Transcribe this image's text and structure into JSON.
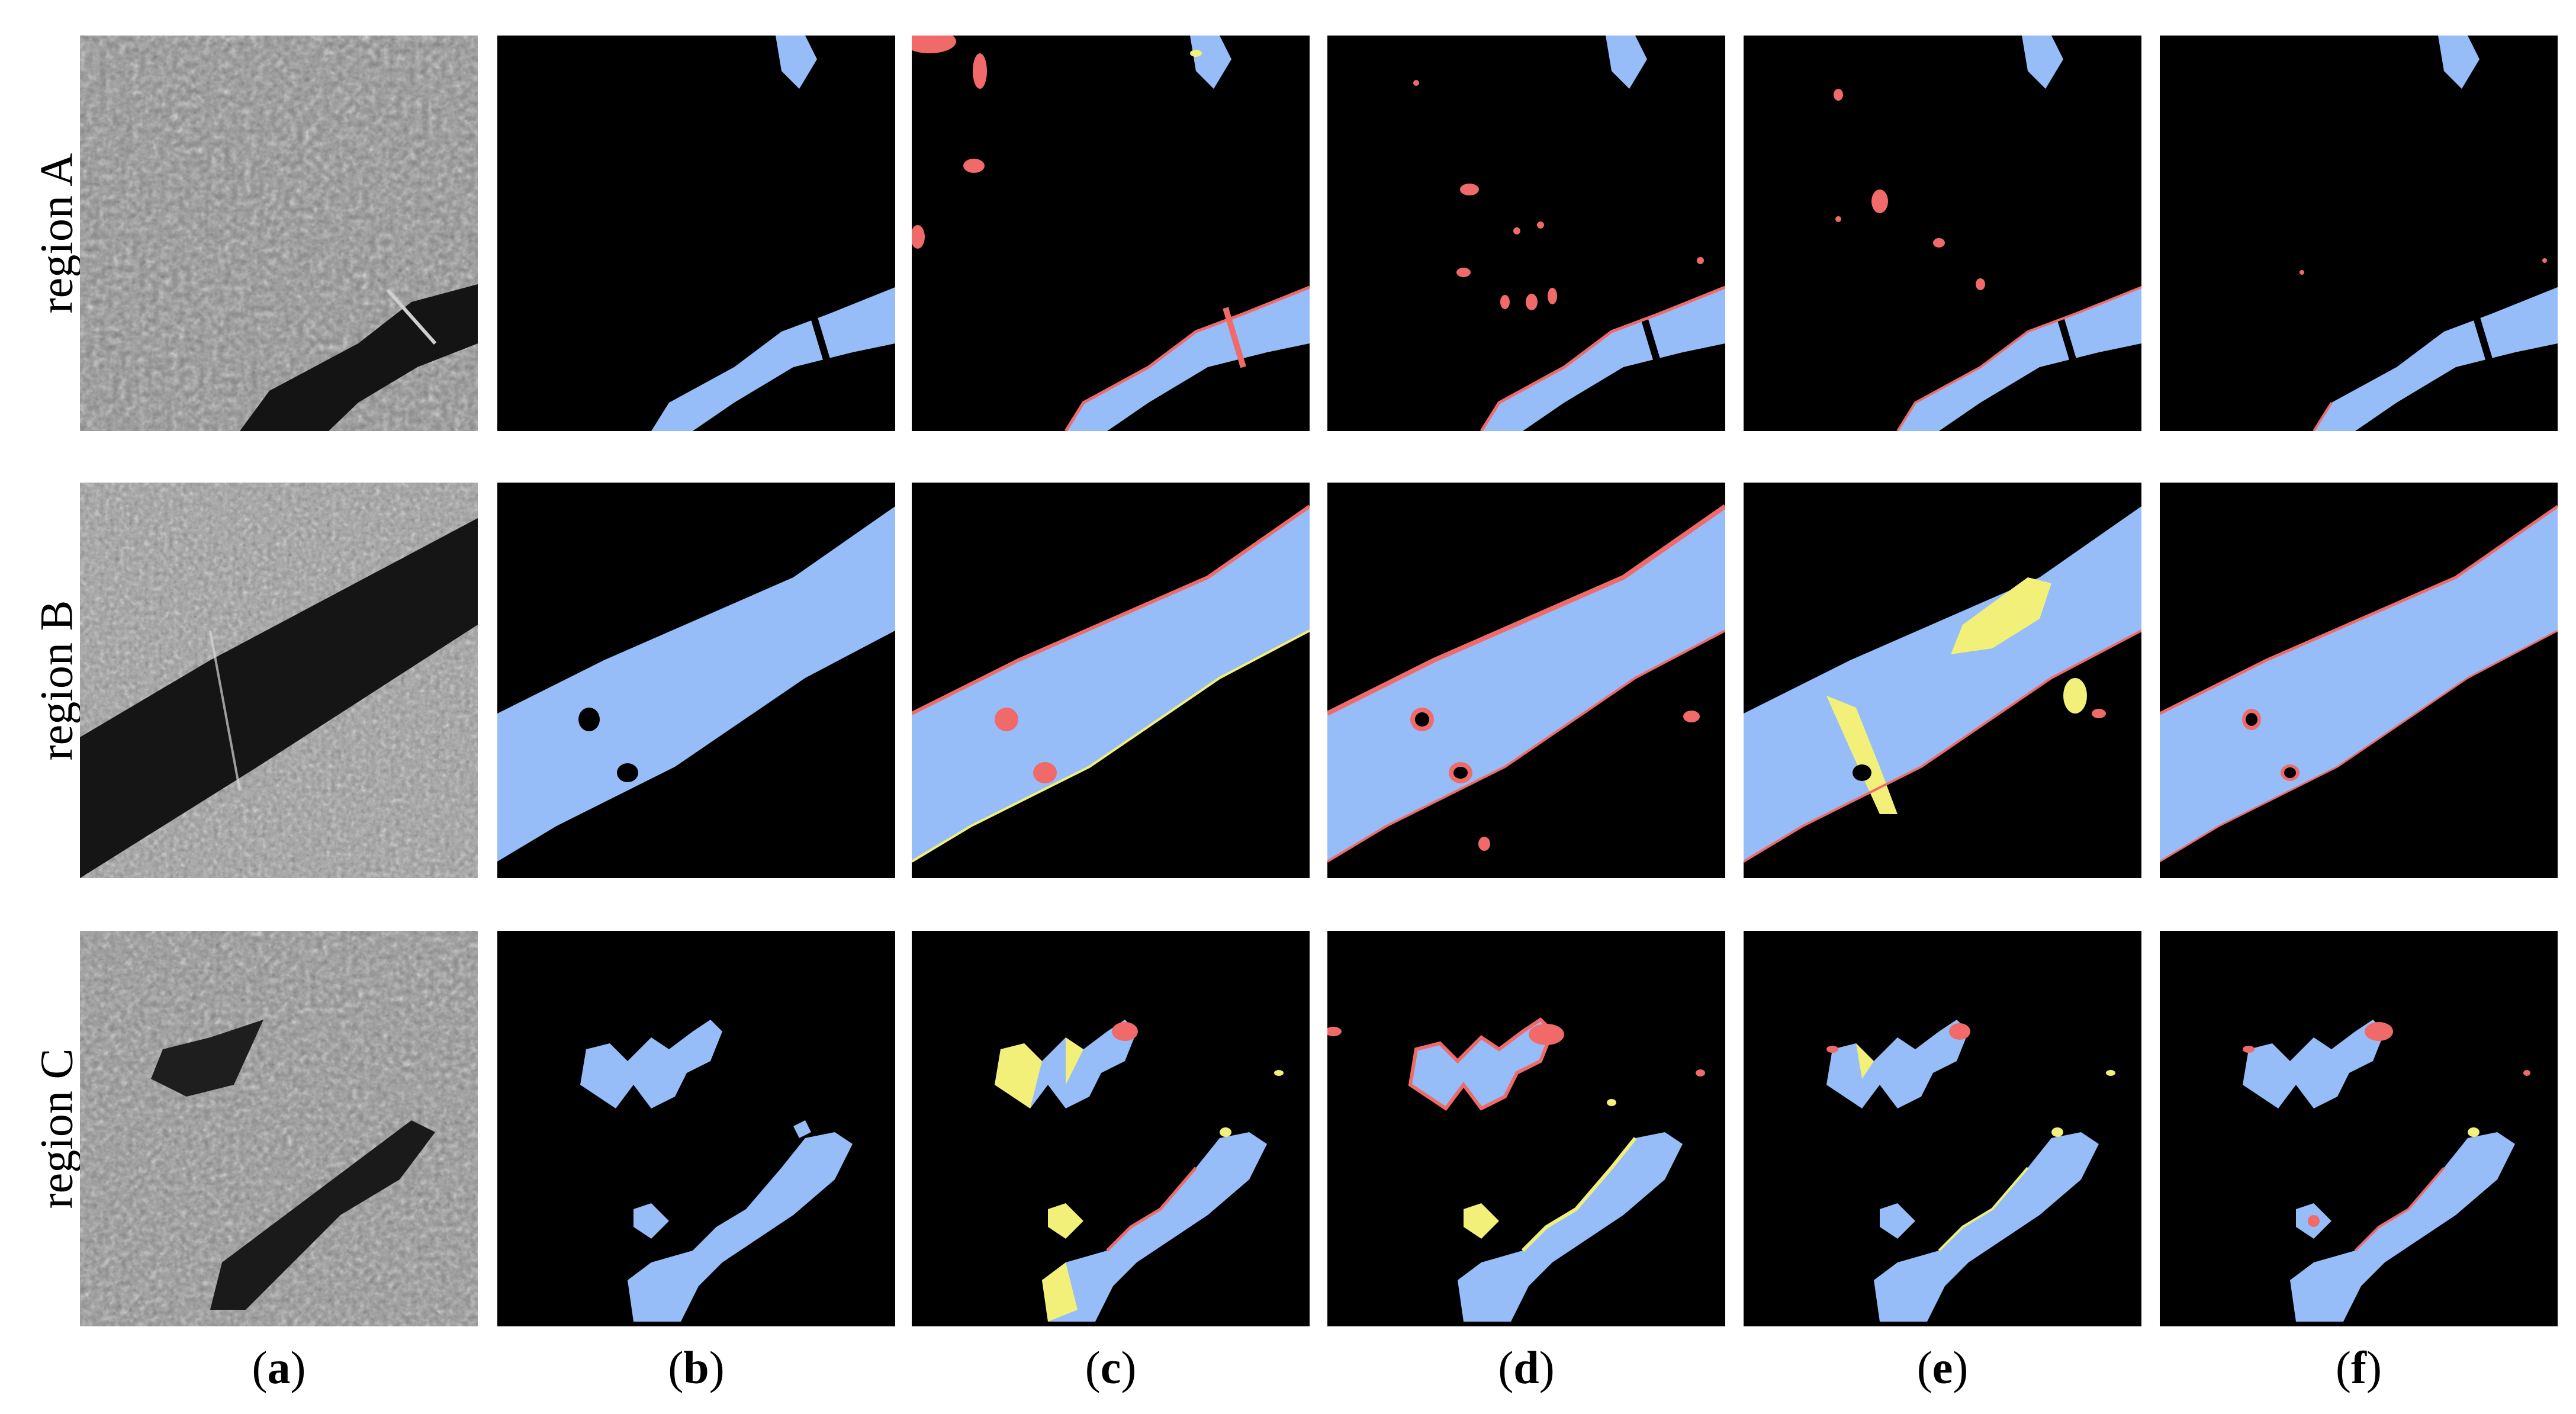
{
  "rows": [
    {
      "label": "region A"
    },
    {
      "label": "region B"
    },
    {
      "label": "region C"
    }
  ],
  "columns": [
    {
      "letter": "a"
    },
    {
      "letter": "b"
    },
    {
      "letter": "c"
    },
    {
      "letter": "d"
    },
    {
      "letter": "e"
    },
    {
      "letter": "f"
    }
  ],
  "colors": {
    "water": "#96bdf8",
    "background": "#000000",
    "false_positive": "#f06a6a",
    "false_negative": "#f3f07a"
  }
}
